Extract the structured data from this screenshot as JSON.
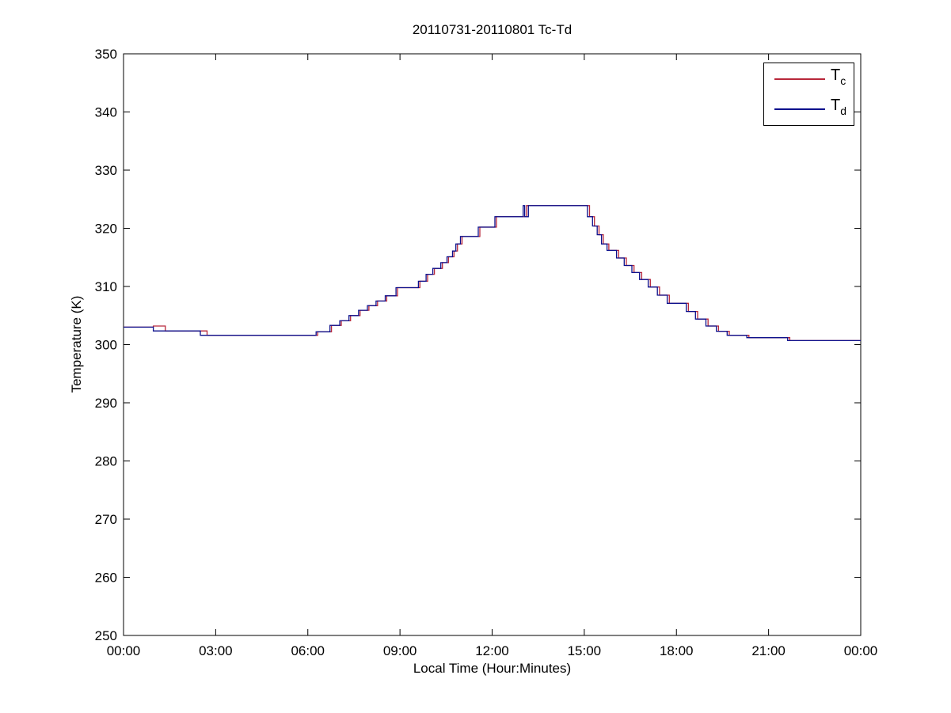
{
  "chart_data": {
    "type": "line",
    "style": "step",
    "title": "20110731-20110801 Tc-Td",
    "xlabel": "Local Time (Hour:Minutes)",
    "ylabel": "Temperature (K)",
    "xlim": [
      0,
      24
    ],
    "ylim": [
      250,
      350
    ],
    "grid": false,
    "x_tick_hours": [
      0,
      3,
      6,
      9,
      12,
      15,
      18,
      21,
      24
    ],
    "x_tick_labels": [
      "00:00",
      "03:00",
      "06:00",
      "09:00",
      "12:00",
      "15:00",
      "18:00",
      "21:00",
      "00:00"
    ],
    "y_ticks": [
      250,
      260,
      270,
      280,
      290,
      300,
      310,
      320,
      330,
      340,
      350
    ],
    "legend_position": "top-right",
    "series": [
      {
        "name": "Tc",
        "label_main": "T",
        "label_sub": "c",
        "color": "#b8273a",
        "points": [
          [
            0.0,
            303.0
          ],
          [
            0.97,
            303.2
          ],
          [
            1.36,
            302.35
          ],
          [
            2.72,
            301.6
          ],
          [
            6.32,
            302.2
          ],
          [
            6.77,
            303.3
          ],
          [
            7.09,
            304.1
          ],
          [
            7.39,
            305.0
          ],
          [
            7.7,
            305.9
          ],
          [
            7.99,
            306.7
          ],
          [
            8.27,
            307.5
          ],
          [
            8.57,
            308.4
          ],
          [
            8.92,
            309.8
          ],
          [
            9.65,
            310.9
          ],
          [
            9.9,
            312.1
          ],
          [
            10.12,
            313.1
          ],
          [
            10.38,
            314.1
          ],
          [
            10.58,
            315.1
          ],
          [
            10.76,
            316.1
          ],
          [
            10.87,
            317.3
          ],
          [
            11.02,
            318.6
          ],
          [
            11.6,
            320.2
          ],
          [
            12.14,
            322.0
          ],
          [
            13.12,
            323.9
          ],
          [
            15.17,
            322.0
          ],
          [
            15.33,
            320.4
          ],
          [
            15.48,
            318.9
          ],
          [
            15.62,
            317.3
          ],
          [
            15.8,
            316.2
          ],
          [
            16.12,
            314.9
          ],
          [
            16.37,
            313.6
          ],
          [
            16.62,
            312.4
          ],
          [
            16.87,
            311.2
          ],
          [
            17.15,
            309.9
          ],
          [
            17.45,
            308.5
          ],
          [
            17.77,
            307.1
          ],
          [
            18.39,
            305.7
          ],
          [
            18.69,
            304.4
          ],
          [
            19.03,
            303.2
          ],
          [
            19.37,
            302.3
          ],
          [
            19.72,
            301.6
          ],
          [
            20.36,
            301.2
          ],
          [
            21.69,
            300.7
          ],
          [
            24.0,
            300.7
          ]
        ]
      },
      {
        "name": "Td",
        "label_main": "T",
        "label_sub": "d",
        "color": "#0d108c",
        "points": [
          [
            0.0,
            303.0
          ],
          [
            0.97,
            302.35
          ],
          [
            2.5,
            301.6
          ],
          [
            6.27,
            302.2
          ],
          [
            6.72,
            303.3
          ],
          [
            7.04,
            304.1
          ],
          [
            7.34,
            305.0
          ],
          [
            7.65,
            305.9
          ],
          [
            7.94,
            306.7
          ],
          [
            8.22,
            307.5
          ],
          [
            8.52,
            308.4
          ],
          [
            8.87,
            309.8
          ],
          [
            9.6,
            310.9
          ],
          [
            9.85,
            312.1
          ],
          [
            10.07,
            313.1
          ],
          [
            10.33,
            314.1
          ],
          [
            10.53,
            315.1
          ],
          [
            10.71,
            316.1
          ],
          [
            10.82,
            317.3
          ],
          [
            10.97,
            318.6
          ],
          [
            11.55,
            320.2
          ],
          [
            12.09,
            322.0
          ],
          [
            13.01,
            323.9
          ],
          [
            13.06,
            322.0
          ],
          [
            13.18,
            323.9
          ],
          [
            15.1,
            322.0
          ],
          [
            15.27,
            320.4
          ],
          [
            15.42,
            318.9
          ],
          [
            15.56,
            317.3
          ],
          [
            15.74,
            316.2
          ],
          [
            16.05,
            314.9
          ],
          [
            16.3,
            313.6
          ],
          [
            16.55,
            312.4
          ],
          [
            16.8,
            311.2
          ],
          [
            17.08,
            309.9
          ],
          [
            17.38,
            308.5
          ],
          [
            17.7,
            307.1
          ],
          [
            18.32,
            305.7
          ],
          [
            18.62,
            304.4
          ],
          [
            18.96,
            303.2
          ],
          [
            19.3,
            302.3
          ],
          [
            19.65,
            301.6
          ],
          [
            20.29,
            301.2
          ],
          [
            21.62,
            300.7
          ],
          [
            24.0,
            300.7
          ]
        ]
      }
    ],
    "axis_color": "#000000",
    "background_color": "#ffffff"
  },
  "legend": {
    "entries": [
      {
        "main": "T",
        "sub": "c"
      },
      {
        "main": "T",
        "sub": "d"
      }
    ]
  }
}
